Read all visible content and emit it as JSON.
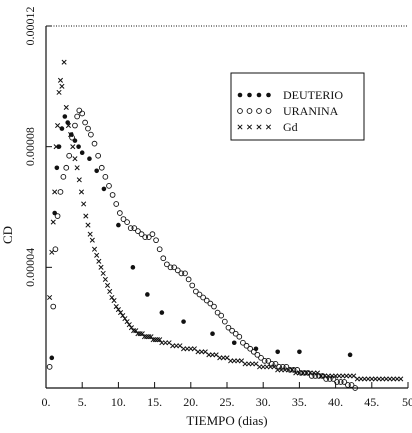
{
  "chart_data": {
    "type": "scatter",
    "title": "",
    "xlabel": "TIEMPO (dias)",
    "ylabel": "CD",
    "xlim": [
      0,
      50
    ],
    "ylim": [
      0,
      0.00012
    ],
    "x_tick_labels": [
      "0.",
      "5.",
      "10.",
      "15.",
      "20.",
      "25.",
      "30.",
      "35.",
      "40.",
      "45.",
      "50"
    ],
    "y_tick_labels": [
      "0.00004",
      "0.00008",
      "0.00012"
    ],
    "grid": false,
    "legend_position": "top-right",
    "series": [
      {
        "name": "DEUTERIO",
        "marker": "dot",
        "points": [
          [
            0.8,
            1e-05
          ],
          [
            1.2,
            5.8e-05
          ],
          [
            1.5,
            7.3e-05
          ],
          [
            1.8,
            8e-05
          ],
          [
            2.2,
            8.6e-05
          ],
          [
            2.6,
            9e-05
          ],
          [
            3,
            8.8e-05
          ],
          [
            3.5,
            8.4e-05
          ],
          [
            4,
            8.2e-05
          ],
          [
            4.5,
            8e-05
          ],
          [
            5,
            7.8e-05
          ],
          [
            6,
            7.6e-05
          ],
          [
            7,
            7.2e-05
          ],
          [
            8,
            6.6e-05
          ],
          [
            10,
            5.4e-05
          ],
          [
            12,
            4e-05
          ],
          [
            14,
            3.1e-05
          ],
          [
            16,
            2.5e-05
          ],
          [
            19,
            2.2e-05
          ],
          [
            23,
            1.8e-05
          ],
          [
            26,
            1.5e-05
          ],
          [
            29,
            1.3e-05
          ],
          [
            32,
            1.2e-05
          ],
          [
            35,
            1.2e-05
          ],
          [
            42,
            1.1e-05
          ]
        ]
      },
      {
        "name": "URANINA",
        "marker": "circle",
        "points": [
          [
            0.5,
            7e-06
          ],
          [
            1,
            2.7e-05
          ],
          [
            1.3,
            4.6e-05
          ],
          [
            1.6,
            5.7e-05
          ],
          [
            2,
            6.5e-05
          ],
          [
            2.4,
            7e-05
          ],
          [
            2.8,
            7.3e-05
          ],
          [
            3.2,
            7.7e-05
          ],
          [
            3.6,
            8.3e-05
          ],
          [
            4,
            8.7e-05
          ],
          [
            4.3,
            9e-05
          ],
          [
            4.6,
            9.2e-05
          ],
          [
            5,
            9.1e-05
          ],
          [
            5.4,
            8.8e-05
          ],
          [
            5.8,
            8.6e-05
          ],
          [
            6.2,
            8.4e-05
          ],
          [
            6.7,
            8.1e-05
          ],
          [
            7.2,
            7.7e-05
          ],
          [
            7.7,
            7.3e-05
          ],
          [
            8.2,
            7e-05
          ],
          [
            8.7,
            6.7e-05
          ],
          [
            9.2,
            6.4e-05
          ],
          [
            9.7,
            6.1e-05
          ],
          [
            10.2,
            5.8e-05
          ],
          [
            10.7,
            5.6e-05
          ],
          [
            11.2,
            5.5e-05
          ],
          [
            11.7,
            5.3e-05
          ],
          [
            12.2,
            5.3e-05
          ],
          [
            12.7,
            5.2e-05
          ],
          [
            13.2,
            5.1e-05
          ],
          [
            13.7,
            5e-05
          ],
          [
            14.2,
            5e-05
          ],
          [
            14.7,
            5.1e-05
          ],
          [
            15.2,
            4.9e-05
          ],
          [
            15.7,
            4.6e-05
          ],
          [
            16.2,
            4.3e-05
          ],
          [
            16.7,
            4.1e-05
          ],
          [
            17.2,
            4e-05
          ],
          [
            17.7,
            4e-05
          ],
          [
            18.2,
            3.9e-05
          ],
          [
            18.7,
            3.8e-05
          ],
          [
            19.2,
            3.8e-05
          ],
          [
            19.7,
            3.6e-05
          ],
          [
            20.2,
            3.4e-05
          ],
          [
            20.7,
            3.2e-05
          ],
          [
            21.2,
            3.1e-05
          ],
          [
            21.7,
            3e-05
          ],
          [
            22.2,
            2.9e-05
          ],
          [
            22.7,
            2.8e-05
          ],
          [
            23.2,
            2.7e-05
          ],
          [
            23.7,
            2.5e-05
          ],
          [
            24.2,
            2.4e-05
          ],
          [
            24.7,
            2.2e-05
          ],
          [
            25.2,
            2e-05
          ],
          [
            25.7,
            1.9e-05
          ],
          [
            26.2,
            1.8e-05
          ],
          [
            26.7,
            1.7e-05
          ],
          [
            27.2,
            1.5e-05
          ],
          [
            27.7,
            1.4e-05
          ],
          [
            28.2,
            1.3e-05
          ],
          [
            28.7,
            1.2e-05
          ],
          [
            29.2,
            1.1e-05
          ],
          [
            29.7,
            1e-05
          ],
          [
            30.2,
            9e-06
          ],
          [
            30.7,
            9e-06
          ],
          [
            31.2,
            8e-06
          ],
          [
            31.7,
            8e-06
          ],
          [
            32.2,
            7e-06
          ],
          [
            32.7,
            7e-06
          ],
          [
            33.2,
            7e-06
          ],
          [
            33.7,
            6e-06
          ],
          [
            34.2,
            6e-06
          ],
          [
            34.7,
            6e-06
          ],
          [
            35.2,
            5e-06
          ],
          [
            35.7,
            5e-06
          ],
          [
            36.2,
            5e-06
          ],
          [
            36.7,
            4e-06
          ],
          [
            37.2,
            4e-06
          ],
          [
            37.7,
            4e-06
          ],
          [
            38.2,
            4e-06
          ],
          [
            38.7,
            3e-06
          ],
          [
            39.2,
            3e-06
          ],
          [
            39.7,
            3e-06
          ],
          [
            40.2,
            2e-06
          ],
          [
            40.7,
            2e-06
          ],
          [
            41.2,
            2e-06
          ],
          [
            41.7,
            1e-06
          ],
          [
            42.2,
            1e-06
          ],
          [
            42.7,
            0.0
          ]
        ]
      },
      {
        "name": "Gd",
        "marker": "cross",
        "points": [
          [
            0.5,
            3e-05
          ],
          [
            0.8,
            4.5e-05
          ],
          [
            1,
            5.5e-05
          ],
          [
            1.2,
            6.5e-05
          ],
          [
            1.4,
            8e-05
          ],
          [
            1.6,
            8.7e-05
          ],
          [
            1.8,
            9.8e-05
          ],
          [
            2,
            0.000102
          ],
          [
            2.2,
            0.0001
          ],
          [
            2.5,
            0.000108
          ],
          [
            2.8,
            9.3e-05
          ],
          [
            3.1,
            8.7e-05
          ],
          [
            3.4,
            8.4e-05
          ],
          [
            3.7,
            8e-05
          ],
          [
            4,
            7.6e-05
          ],
          [
            4.3,
            7.3e-05
          ],
          [
            4.6,
            6.9e-05
          ],
          [
            4.9,
            6.5e-05
          ],
          [
            5.2,
            6.1e-05
          ],
          [
            5.5,
            5.7e-05
          ],
          [
            5.8,
            5.4e-05
          ],
          [
            6.1,
            5.1e-05
          ],
          [
            6.4,
            4.9e-05
          ],
          [
            6.7,
            4.6e-05
          ],
          [
            7,
            4.4e-05
          ],
          [
            7.3,
            4.2e-05
          ],
          [
            7.6,
            4e-05
          ],
          [
            7.9,
            3.8e-05
          ],
          [
            8.2,
            3.6e-05
          ],
          [
            8.5,
            3.4e-05
          ],
          [
            8.8,
            3.2e-05
          ],
          [
            9.1,
            3e-05
          ],
          [
            9.4,
            2.9e-05
          ],
          [
            9.7,
            2.7e-05
          ],
          [
            10,
            2.6e-05
          ],
          [
            10.3,
            2.5e-05
          ],
          [
            10.6,
            2.4e-05
          ],
          [
            10.9,
            2.3e-05
          ],
          [
            11.2,
            2.2e-05
          ],
          [
            11.5,
            2.1e-05
          ],
          [
            11.8,
            2e-05
          ],
          [
            12.1,
            1.9e-05
          ],
          [
            12.4,
            1.9e-05
          ],
          [
            12.7,
            1.8e-05
          ],
          [
            13,
            1.8e-05
          ],
          [
            13.3,
            1.8e-05
          ],
          [
            13.6,
            1.7e-05
          ],
          [
            13.9,
            1.7e-05
          ],
          [
            14.2,
            1.7e-05
          ],
          [
            14.5,
            1.7e-05
          ],
          [
            14.8,
            1.6e-05
          ],
          [
            15.1,
            1.6e-05
          ],
          [
            15.4,
            1.6e-05
          ],
          [
            15.7,
            1.6e-05
          ],
          [
            16,
            1.5e-05
          ],
          [
            16.5,
            1.5e-05
          ],
          [
            17,
            1.5e-05
          ],
          [
            17.5,
            1.4e-05
          ],
          [
            18,
            1.4e-05
          ],
          [
            18.5,
            1.4e-05
          ],
          [
            19,
            1.3e-05
          ],
          [
            19.5,
            1.3e-05
          ],
          [
            20,
            1.3e-05
          ],
          [
            20.5,
            1.3e-05
          ],
          [
            21,
            1.2e-05
          ],
          [
            21.5,
            1.2e-05
          ],
          [
            22,
            1.2e-05
          ],
          [
            22.5,
            1.1e-05
          ],
          [
            23,
            1.1e-05
          ],
          [
            23.5,
            1.1e-05
          ],
          [
            24,
            1e-05
          ],
          [
            24.5,
            1e-05
          ],
          [
            25,
            1e-05
          ],
          [
            25.5,
            9e-06
          ],
          [
            26,
            9e-06
          ],
          [
            26.5,
            9e-06
          ],
          [
            27,
            9e-06
          ],
          [
            27.5,
            8e-06
          ],
          [
            28,
            8e-06
          ],
          [
            28.5,
            8e-06
          ],
          [
            29,
            8e-06
          ],
          [
            29.5,
            7e-06
          ],
          [
            30,
            7e-06
          ],
          [
            30.5,
            7e-06
          ],
          [
            31,
            7e-06
          ],
          [
            31.5,
            7e-06
          ],
          [
            32,
            6e-06
          ],
          [
            32.5,
            6e-06
          ],
          [
            33,
            6e-06
          ],
          [
            33.5,
            6e-06
          ],
          [
            34,
            6e-06
          ],
          [
            34.5,
            5e-06
          ],
          [
            35,
            5e-06
          ],
          [
            35.5,
            5e-06
          ],
          [
            36,
            5e-06
          ],
          [
            36.5,
            5e-06
          ],
          [
            37,
            5e-06
          ],
          [
            37.5,
            5e-06
          ],
          [
            38,
            4e-06
          ],
          [
            38.5,
            4e-06
          ],
          [
            39,
            4e-06
          ],
          [
            39.5,
            4e-06
          ],
          [
            40,
            4e-06
          ],
          [
            40.5,
            4e-06
          ],
          [
            41,
            4e-06
          ],
          [
            41.5,
            4e-06
          ],
          [
            42,
            4e-06
          ],
          [
            42.5,
            4e-06
          ],
          [
            43,
            3e-06
          ],
          [
            43.5,
            3e-06
          ],
          [
            44,
            3e-06
          ],
          [
            44.5,
            3e-06
          ],
          [
            45,
            3e-06
          ],
          [
            45.5,
            3e-06
          ],
          [
            46,
            3e-06
          ],
          [
            46.5,
            3e-06
          ],
          [
            47,
            3e-06
          ],
          [
            47.5,
            3e-06
          ],
          [
            48,
            3e-06
          ],
          [
            48.5,
            3e-06
          ],
          [
            49,
            3e-06
          ]
        ]
      }
    ]
  }
}
